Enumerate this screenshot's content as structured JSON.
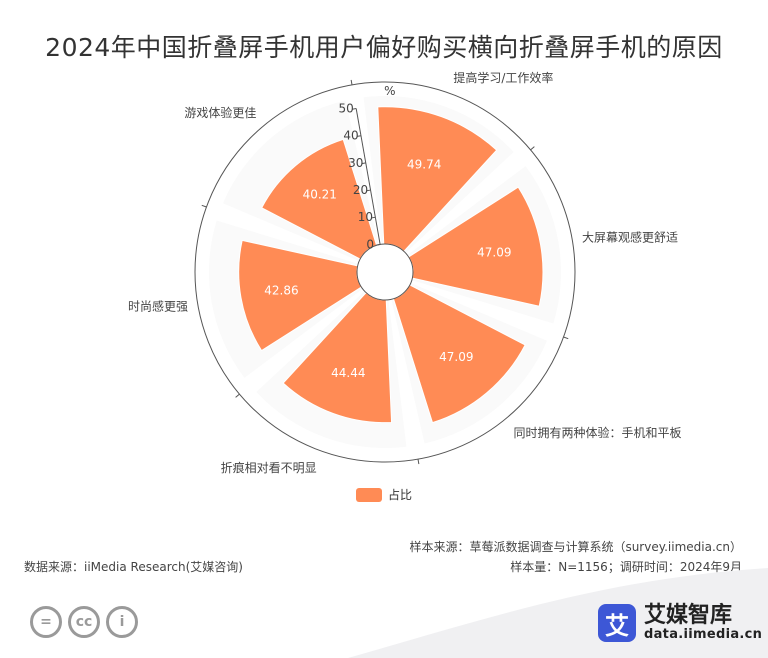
{
  "title": "2024年中国折叠屏手机用户偏好购买横向折叠屏手机的原因",
  "chart_data": {
    "type": "bar",
    "subtype": "polar-bar",
    "categories": [
      "提高学习/工作效率",
      "大屏幕观感更舒适",
      "同时拥有两种体验：手机和平板",
      "折痕相对看不明显",
      "时尚感更强",
      "游戏体验更佳"
    ],
    "series": [
      {
        "name": "占比",
        "values": [
          49.74,
          47.09,
          47.09,
          44.44,
          42.86,
          40.21
        ],
        "color": "#ff8b55"
      }
    ],
    "radial_axis": {
      "unit": "%",
      "range": [
        0,
        50
      ],
      "ticks": [
        0,
        10,
        20,
        30,
        40,
        50
      ]
    },
    "value_labels": [
      "49.74",
      "47.09",
      "47.09",
      "44.44",
      "42.86",
      "40.21"
    ],
    "legend_position": "bottom"
  },
  "footer": {
    "source": "数据来源：iiMedia Research(艾媒咨询)",
    "sample_source": "样本来源：草莓派数据调查与计算系统（survey.iimedia.cn）",
    "sample_info": "样本量：N=1156；调研时间：2024年9月"
  },
  "license_icons": [
    "=",
    "cc",
    "i"
  ],
  "brand": {
    "logo_char": "艾",
    "name": "艾媒智库",
    "url": "data.iimedia.cn",
    "logo_color": "#3d57d6"
  }
}
